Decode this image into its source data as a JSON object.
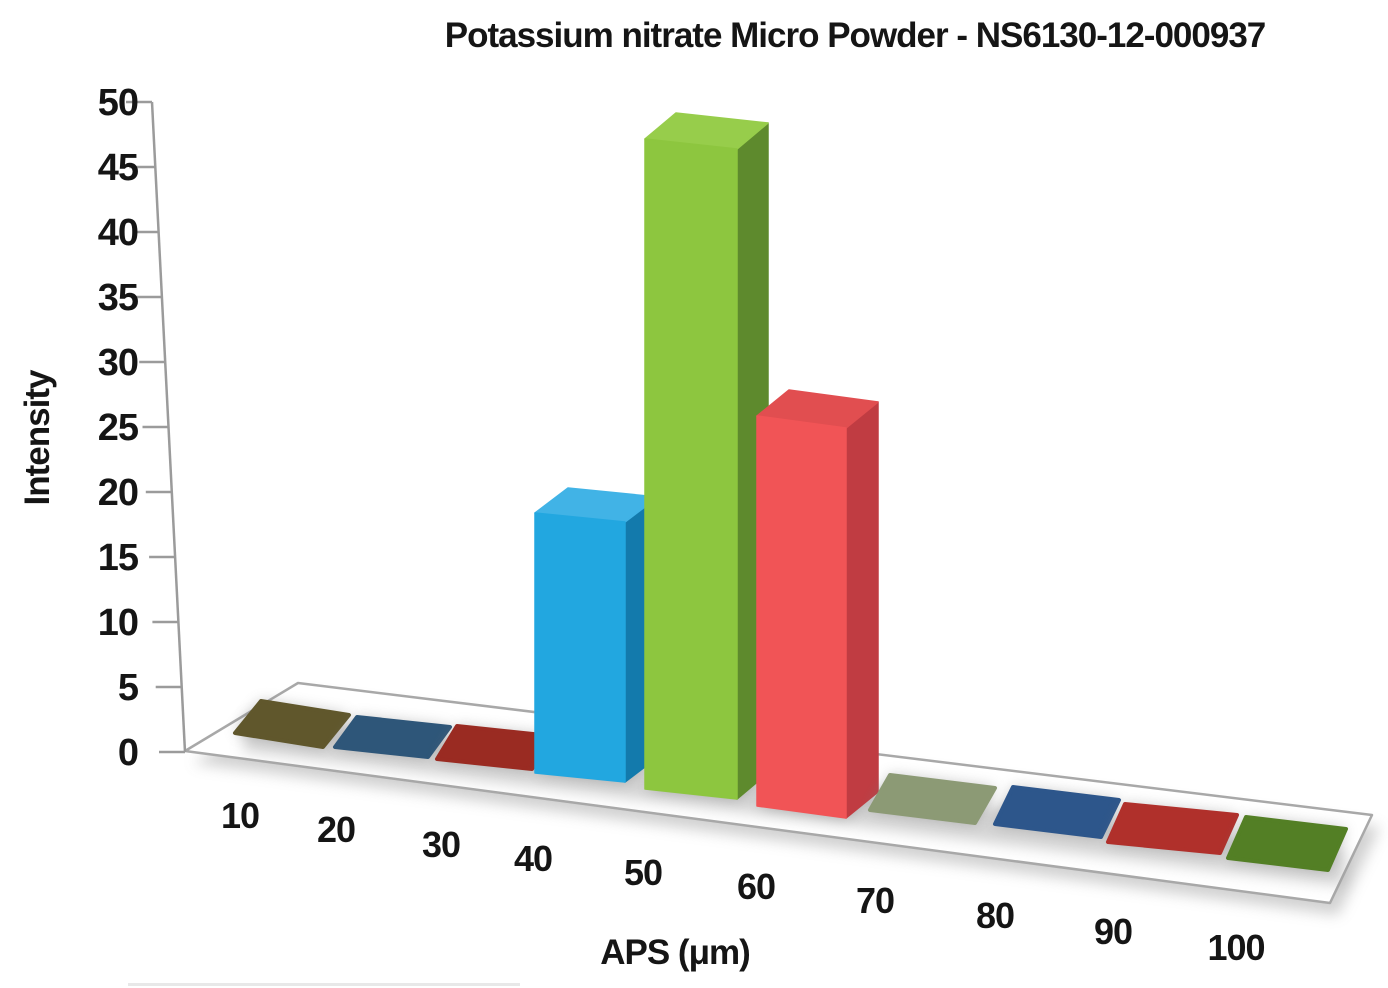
{
  "chart_data": {
    "type": "bar",
    "projection": "3d-column",
    "title": "Potassium nitrate Micro Powder - NS6130-12-000937",
    "xlabel": "APS (μm)",
    "ylabel": "Intensity",
    "ylim": [
      0,
      50
    ],
    "ytick_step": 5,
    "yticks": [
      0,
      5,
      10,
      15,
      20,
      25,
      30,
      35,
      40,
      45,
      50
    ],
    "categories": [
      "10",
      "20",
      "30",
      "40",
      "50",
      "60",
      "70",
      "80",
      "90",
      "100"
    ],
    "values": [
      0,
      0,
      0,
      20,
      50,
      30,
      0,
      0,
      0,
      0
    ],
    "grid": false,
    "legend": "none",
    "points": [
      {
        "category": "10",
        "value": 0,
        "color": "#60572C"
      },
      {
        "category": "20",
        "value": 0,
        "color": "#2E5679"
      },
      {
        "category": "30",
        "value": 0,
        "color": "#9A2B22"
      },
      {
        "category": "40",
        "value": 20,
        "color": "#22A7E0",
        "side": "#137AAC",
        "top": "#41B3E6"
      },
      {
        "category": "50",
        "value": 50,
        "color": "#8DC63F",
        "side": "#5E8A2D",
        "top": "#97CD4B"
      },
      {
        "category": "60",
        "value": 30,
        "color": "#F15456",
        "side": "#C03C42",
        "top": "#E14E50"
      },
      {
        "category": "70",
        "value": 0,
        "color": "#8C9A75"
      },
      {
        "category": "80",
        "value": 0,
        "color": "#2D568B"
      },
      {
        "category": "90",
        "value": 0,
        "color": "#B0302B"
      },
      {
        "category": "100",
        "value": 0,
        "color": "#537F25"
      }
    ],
    "style_colors": {
      "axis": "#9B9B9B",
      "text": "#151515",
      "floor_fill": "#FFFFFF",
      "floor_border": "#A8A8A8",
      "shadow": "#8C8C8C",
      "background": "#FFFFFF"
    }
  }
}
